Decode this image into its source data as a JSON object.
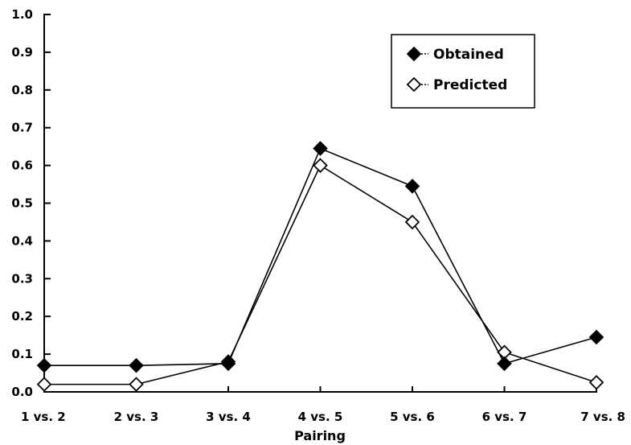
{
  "chart_data": {
    "type": "line",
    "title": "",
    "xlabel": "Pairing",
    "ylabel": "",
    "categories": [
      "1 vs. 2",
      "2 vs. 3",
      "3 vs. 4",
      "4 vs. 5",
      "5 vs. 6",
      "6 vs. 7",
      "7 vs. 8"
    ],
    "ylim": [
      0,
      1.0
    ],
    "yticks": [
      "0.0",
      "0.1",
      "0.2",
      "0.3",
      "0.4",
      "0.5",
      "0.6",
      "0.7",
      "0.8",
      "0.9",
      "1.0"
    ],
    "grid": false,
    "legend_position": "top-right",
    "series": [
      {
        "name": "Obtained",
        "marker": "filled-diamond",
        "color": "#000000",
        "values": [
          0.07,
          0.07,
          0.075,
          0.645,
          0.545,
          0.075,
          0.145
        ]
      },
      {
        "name": "Predicted",
        "marker": "open-diamond",
        "color": "#000000",
        "values": [
          0.02,
          0.02,
          0.08,
          0.6,
          0.45,
          0.105,
          0.025
        ]
      }
    ]
  }
}
